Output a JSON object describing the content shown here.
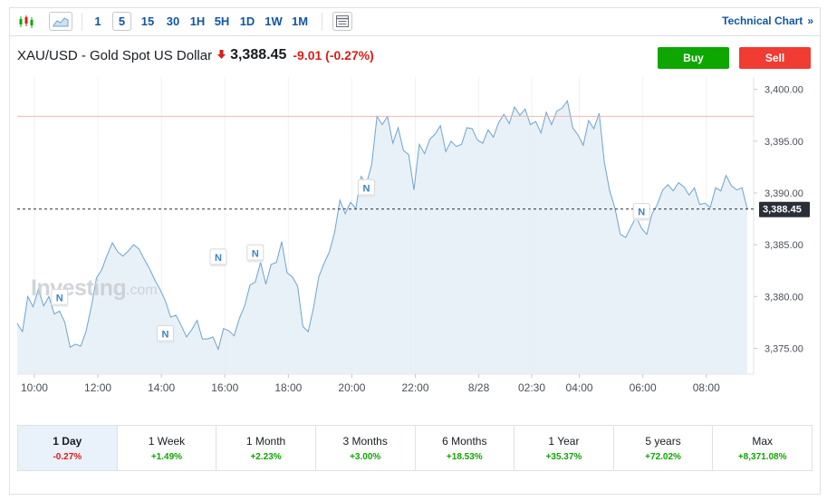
{
  "toolbar": {
    "intervals": [
      "1",
      "5",
      "15",
      "30",
      "1H",
      "5H",
      "1D",
      "1W",
      "1M"
    ],
    "active_interval": "5",
    "technical_chart_label": "Technical Chart",
    "technical_chart_arrow": "»"
  },
  "header": {
    "instrument": "XAU/USD - Gold Spot US Dollar",
    "direction_arrow": "🡇",
    "price": "3,388.45",
    "change": "-9.01 (-0.27%)",
    "buy_label": "Buy",
    "sell_label": "Sell"
  },
  "watermark": {
    "brand": "Investing",
    "suffix": ".com"
  },
  "colors": {
    "line": "#6ea3cf",
    "area": "#e4eef7",
    "up": "#0ea600",
    "down": "#d91e18",
    "link": "#1256a0",
    "reference_line": "#f0b4b4"
  },
  "chart_data": {
    "type": "area",
    "instrument": "XAU/USD",
    "x_tick_labels": [
      "10:00",
      "12:00",
      "14:00",
      "16:00",
      "18:00",
      "20:00",
      "22:00",
      "8/28",
      "02:30",
      "04:00",
      "06:00",
      "08:00"
    ],
    "y_tick_labels": [
      "3,375.00",
      "3,380.00",
      "3,385.00",
      "3,390.00",
      "3,395.00",
      "3,400.00"
    ],
    "y_ticks": [
      3375,
      3380,
      3385,
      3390,
      3395,
      3400
    ],
    "ylim": [
      3372.5,
      3401.2
    ],
    "x_tick_index": [
      3.25,
      15.25,
      27.25,
      39.25,
      51.25,
      63.25,
      75.25,
      87.25,
      97.25,
      106.25,
      118.25,
      130.25
    ],
    "x_index_range": [
      0,
      138
    ],
    "values": [
      3377.4,
      3376.6,
      3380.0,
      3379.0,
      3380.7,
      3379.1,
      3380.0,
      3378.3,
      3378.6,
      3377.5,
      3375.1,
      3375.4,
      3375.2,
      3376.6,
      3379.0,
      3381.8,
      3382.6,
      3384.0,
      3385.2,
      3384.3,
      3383.9,
      3384.4,
      3385.0,
      3384.6,
      3383.6,
      3382.7,
      3381.6,
      3380.7,
      3379.6,
      3378.0,
      3378.2,
      3377.2,
      3376.1,
      3376.8,
      3377.7,
      3375.9,
      3375.9,
      3376.1,
      3374.9,
      3376.9,
      3376.7,
      3376.2,
      3377.9,
      3379.1,
      3381.1,
      3381.4,
      3383.3,
      3381.2,
      3383.1,
      3383.3,
      3385.3,
      3382.3,
      3381.9,
      3381.0,
      3377.1,
      3376.6,
      3378.9,
      3381.9,
      3383.2,
      3384.3,
      3386.2,
      3389.3,
      3388.0,
      3389.1,
      3388.5,
      3391.6,
      3390.9,
      3392.7,
      3397.4,
      3396.6,
      3397.4,
      3394.8,
      3396.3,
      3394.1,
      3393.7,
      3390.3,
      3394.7,
      3393.8,
      3395.2,
      3395.7,
      3396.5,
      3394.0,
      3395.0,
      3394.5,
      3394.7,
      3396.3,
      3396.2,
      3395.1,
      3394.8,
      3396.1,
      3395.4,
      3396.8,
      3397.6,
      3396.7,
      3398.3,
      3397.5,
      3398.1,
      3396.6,
      3396.9,
      3395.8,
      3397.8,
      3396.6,
      3397.9,
      3398.2,
      3398.9,
      3396.3,
      3395.6,
      3394.6,
      3397.0,
      3396.2,
      3397.7,
      3392.9,
      3390.2,
      3388.5,
      3386.0,
      3385.7,
      3386.7,
      3387.7,
      3386.6,
      3386.0,
      3388.0,
      3388.9,
      3390.3,
      3390.8,
      3390.2,
      3391.0,
      3390.6,
      3389.8,
      3390.5,
      3388.9,
      3389.0,
      3388.6,
      3390.5,
      3390.2,
      3391.7,
      3390.7,
      3390.3,
      3390.5,
      3388.45
    ],
    "reference_line": 3397.4,
    "last_price": 3388.45,
    "last_price_label": "3,388.45",
    "news_marker_label": "N",
    "news_markers": [
      {
        "index": 8,
        "value": 3379.9
      },
      {
        "index": 28,
        "value": 3376.4
      },
      {
        "index": 38,
        "value": 3383.8
      },
      {
        "index": 45,
        "value": 3384.2
      },
      {
        "index": 66,
        "value": 3390.5
      },
      {
        "index": 118,
        "value": 3388.2
      }
    ],
    "grid": "vertical-only",
    "ylabel": "",
    "xlabel": ""
  },
  "periods": [
    {
      "label": "1 Day",
      "value": "-0.27%",
      "direction": "down",
      "active": true
    },
    {
      "label": "1 Week",
      "value": "+1.49%",
      "direction": "up",
      "active": false
    },
    {
      "label": "1 Month",
      "value": "+2.23%",
      "direction": "up",
      "active": false
    },
    {
      "label": "3 Months",
      "value": "+3.00%",
      "direction": "up",
      "active": false
    },
    {
      "label": "6 Months",
      "value": "+18.53%",
      "direction": "up",
      "active": false
    },
    {
      "label": "1 Year",
      "value": "+35.37%",
      "direction": "up",
      "active": false
    },
    {
      "label": "5 years",
      "value": "+72.02%",
      "direction": "up",
      "active": false
    },
    {
      "label": "Max",
      "value": "+8,371.08%",
      "direction": "up",
      "active": false
    }
  ]
}
